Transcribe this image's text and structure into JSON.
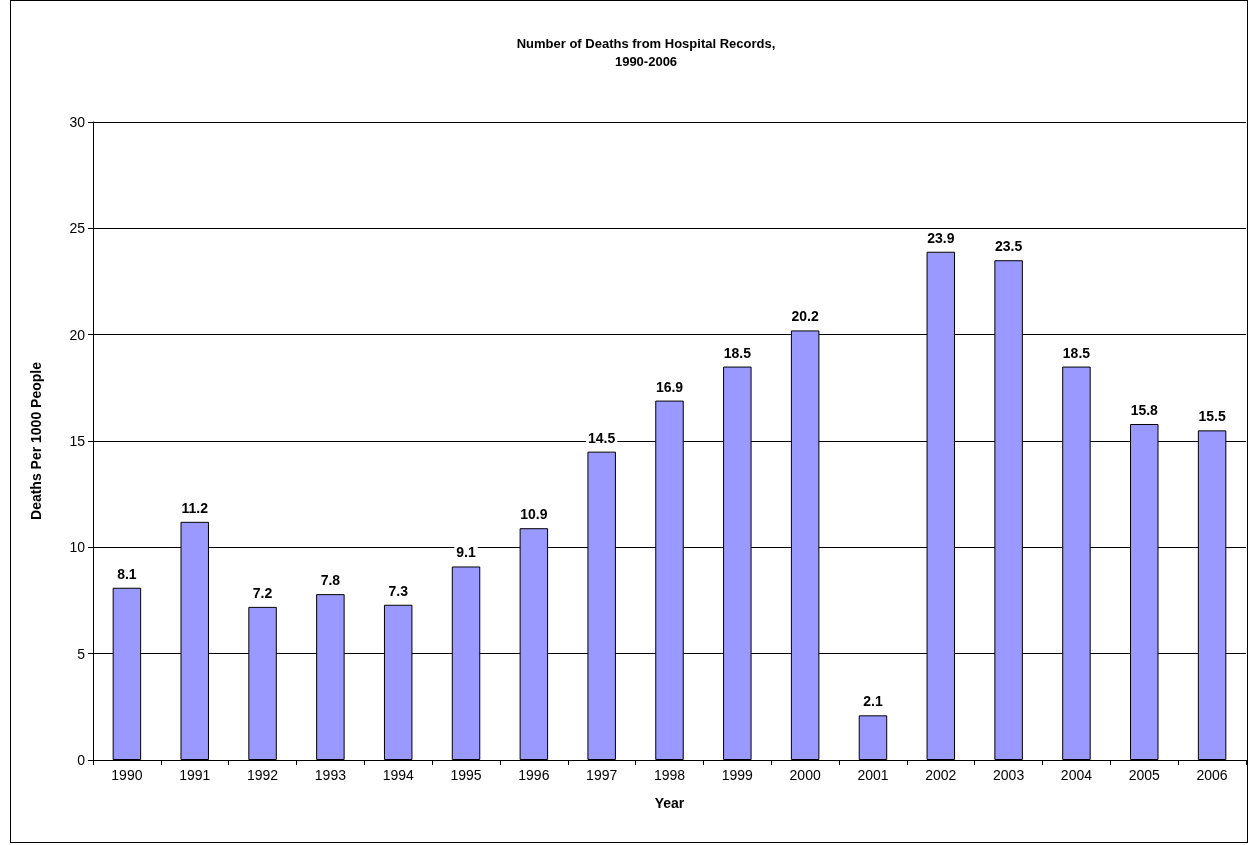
{
  "chart_data": {
    "type": "bar",
    "title": "Number of Deaths from Hospital Records,\n1990-2006",
    "xlabel": "Year",
    "ylabel": "Deaths Per 1000 People",
    "categories": [
      "1990",
      "1991",
      "1992",
      "1993",
      "1994",
      "1995",
      "1996",
      "1997",
      "1998",
      "1999",
      "2000",
      "2001",
      "2002",
      "2003",
      "2004",
      "2005",
      "2006"
    ],
    "values": [
      8.1,
      11.2,
      7.2,
      7.8,
      7.3,
      9.1,
      10.9,
      14.5,
      16.9,
      18.5,
      20.2,
      2.1,
      23.9,
      23.5,
      18.5,
      15.8,
      15.5
    ],
    "color": "#9999ff",
    "ylim": [
      0,
      30
    ],
    "yticks": [
      0,
      5,
      10,
      15,
      20,
      25,
      30
    ],
    "grid": "y",
    "data_labels": true
  }
}
